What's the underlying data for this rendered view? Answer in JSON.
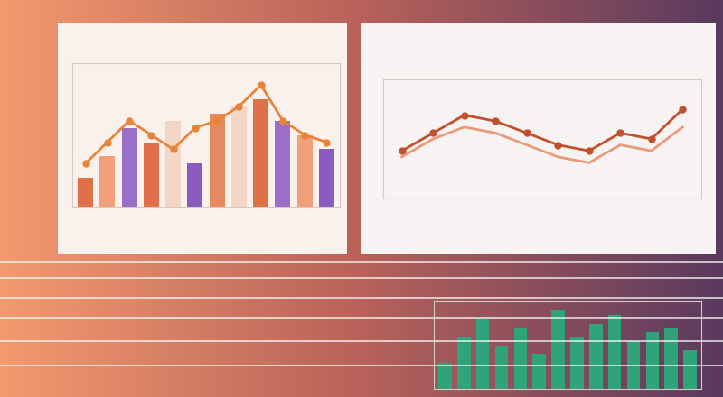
{
  "chart_data": [
    {
      "type": "bar",
      "categories": [
        null,
        null,
        null,
        null,
        null,
        null,
        null,
        null,
        null,
        null,
        null,
        null
      ],
      "series": [
        {
          "type": "bar",
          "values": [
            20,
            35,
            55,
            45,
            60,
            30,
            65,
            70,
            75,
            60,
            50,
            40
          ],
          "colors": [
            "#e0704a",
            "#f2a07a",
            "#9a6fc8",
            "#e0704a",
            "#f4d6c6",
            "#8a5cc0",
            "#e58a5e",
            "#f4d6c6",
            "#e0704a",
            "#9a6fc8",
            "#f2a07a",
            "#8a5cc0"
          ]
        },
        {
          "type": "line",
          "values": [
            30,
            45,
            60,
            50,
            40,
            55,
            60,
            70,
            85,
            60,
            50,
            45
          ],
          "color": "#e8833a",
          "marker": "o"
        }
      ],
      "ylim": [
        0,
        100
      ],
      "yticks": [],
      "tick_labels": false
    },
    {
      "type": "line",
      "categories": [
        null,
        null,
        null,
        null,
        null,
        null,
        null,
        null,
        null,
        null
      ],
      "series": [
        {
          "values": [
            40,
            55,
            70,
            65,
            55,
            45,
            40,
            55,
            50,
            75
          ],
          "color": "#c0502e",
          "marker": "o"
        },
        {
          "values": [
            35,
            50,
            60,
            55,
            45,
            35,
            30,
            45,
            40,
            60
          ],
          "color": "#e89a7a"
        }
      ],
      "ylim": [
        0,
        100
      ],
      "yticks": [],
      "tick_labels": false
    },
    {
      "type": "bar",
      "categories": [
        null,
        null,
        null,
        null,
        null,
        null,
        null,
        null,
        null,
        null,
        null,
        null,
        null,
        null
      ],
      "values": [
        30,
        60,
        80,
        50,
        70,
        40,
        90,
        60,
        75,
        85,
        55,
        65,
        70,
        45
      ],
      "color": "#2fa37a",
      "ylim": [
        0,
        100
      ],
      "yticks": [],
      "tick_labels": false
    }
  ]
}
